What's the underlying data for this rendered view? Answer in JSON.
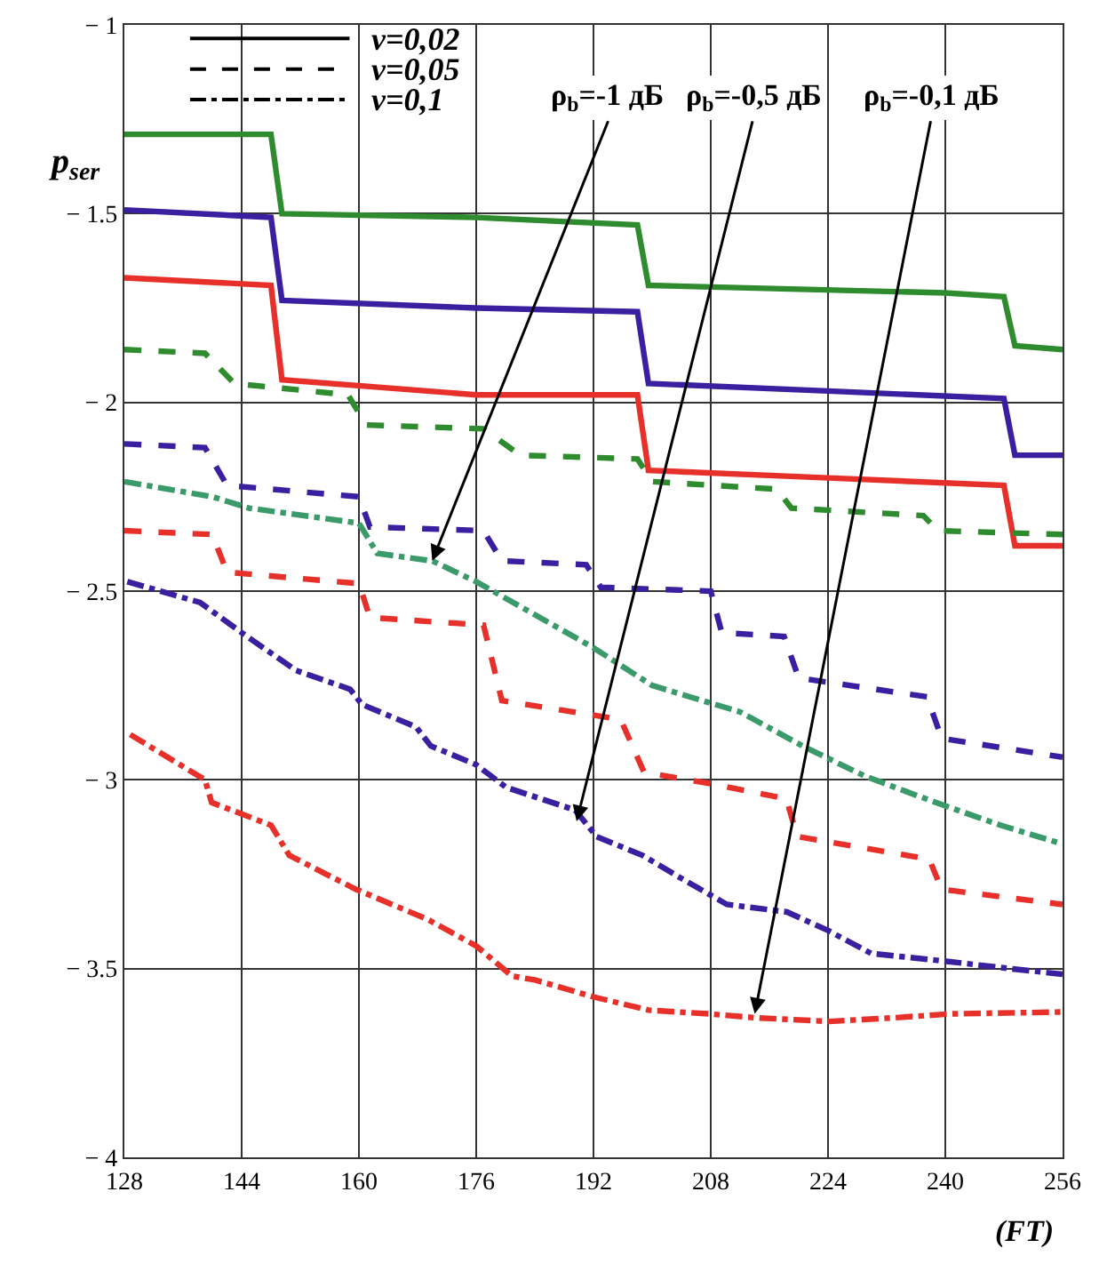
{
  "chart_data": {
    "type": "line",
    "xlabel": "(FT)",
    "ylabel": "p$_{ser}$",
    "xlim": [
      128,
      256
    ],
    "xticks": [
      128,
      144,
      160,
      176,
      192,
      208,
      224,
      240,
      256
    ],
    "ylim": [
      -4,
      -1
    ],
    "yticks": [
      {
        "value": -4,
        "label": "− 4"
      },
      {
        "value": -3.5,
        "label": "− 3.5"
      },
      {
        "value": -3,
        "label": "− 3"
      },
      {
        "value": -2.5,
        "label": "− 2.5"
      },
      {
        "value": -2,
        "label": "− 2"
      },
      {
        "value": -1.5,
        "label": "− 1.5"
      },
      {
        "value": -1,
        "label": "− 1"
      }
    ],
    "grid": true,
    "legend": "top left",
    "marker": "none",
    "series": [
      {
        "name": "v=0,02",
        "color": "#000000",
        "line_style": "solid"
      },
      {
        "name": "v=0,05",
        "color": "#000000",
        "line_style": "dashed"
      },
      {
        "name": "v=0,1",
        "color": "#000000",
        "line_style": "dashdot"
      },
      {
        "color": "#2e8b2e",
        "line_style": "solid",
        "x": [
          128,
          148,
          149.5,
          176,
          198,
          199.5,
          240,
          248,
          249.5,
          256
        ],
        "values": [
          -1.29,
          -1.29,
          -1.5,
          -1.51,
          -1.53,
          -1.69,
          -1.71,
          -1.72,
          -1.85,
          -1.86
        ]
      },
      {
        "color": "#3a1fa0",
        "line_style": "solid",
        "x": [
          128,
          148,
          149.5,
          176,
          198,
          199.5,
          224,
          248,
          249.5,
          256
        ],
        "values": [
          -1.49,
          -1.51,
          -1.73,
          -1.75,
          -1.76,
          -1.95,
          -1.97,
          -1.99,
          -2.14,
          -2.14
        ]
      },
      {
        "color": "#e8302a",
        "line_style": "solid",
        "x": [
          128,
          148,
          149.5,
          176,
          198,
          199.5,
          224,
          248,
          249.5,
          256
        ],
        "values": [
          -1.67,
          -1.69,
          -1.94,
          -1.98,
          -1.98,
          -2.18,
          -2.2,
          -2.22,
          -2.38,
          -2.38
        ]
      },
      {
        "color": "#2e8b2e",
        "line_style": "dashed",
        "x": [
          128,
          139,
          143,
          158.5,
          161,
          177,
          182,
          198,
          200,
          217,
          219,
          237,
          239,
          256
        ],
        "values": [
          -1.86,
          -1.87,
          -1.95,
          -1.98,
          -2.06,
          -2.07,
          -2.14,
          -2.15,
          -2.21,
          -2.23,
          -2.28,
          -2.3,
          -2.34,
          -2.35
        ]
      },
      {
        "color": "#3a1fa0",
        "line_style": "dashed",
        "x": [
          128,
          139,
          142,
          160,
          161.5,
          177,
          179.5,
          191,
          193,
          208,
          209.5,
          218,
          220,
          237.5,
          239.5,
          256
        ],
        "values": [
          -2.11,
          -2.12,
          -2.22,
          -2.25,
          -2.33,
          -2.34,
          -2.42,
          -2.43,
          -2.49,
          -2.5,
          -2.61,
          -2.62,
          -2.73,
          -2.78,
          -2.89,
          -2.94
        ]
      },
      {
        "color": "#3a9a6a",
        "line_style": "dashdot",
        "x": [
          128,
          140,
          145,
          160,
          162.5,
          170,
          176,
          192,
          200,
          212,
          220.5,
          229,
          238.7,
          247.5,
          256
        ],
        "values": [
          -2.21,
          -2.25,
          -2.28,
          -2.32,
          -2.4,
          -2.42,
          -2.475,
          -2.65,
          -2.75,
          -2.82,
          -2.91,
          -2.99,
          -3.06,
          -3.12,
          -3.17
        ]
      },
      {
        "color": "#e8302a",
        "line_style": "dashed",
        "x": [
          128,
          140,
          142,
          160,
          161.5,
          177,
          179.5,
          195.7,
          198.9,
          208,
          218.3,
          219.8,
          237.8,
          239.5,
          256
        ],
        "values": [
          -2.34,
          -2.35,
          -2.45,
          -2.48,
          -2.57,
          -2.59,
          -2.79,
          -2.84,
          -2.98,
          -3.01,
          -3.05,
          -3.15,
          -3.21,
          -3.29,
          -3.33
        ]
      },
      {
        "color": "#3a1fa0",
        "line_style": "dashdot",
        "x": [
          128.4,
          138.3,
          144,
          151.4,
          158.8,
          160.4,
          167.8,
          169.8,
          176,
          180.1,
          189.5,
          192.4,
          198.7,
          203.9,
          210.2,
          218.4,
          224.1,
          229.9,
          239.8,
          248.8,
          256
        ],
        "values": [
          -2.475,
          -2.53,
          -2.61,
          -2.71,
          -2.76,
          -2.8,
          -2.86,
          -2.91,
          -2.96,
          -3.02,
          -3.08,
          -3.15,
          -3.2,
          -3.26,
          -3.33,
          -3.35,
          -3.4,
          -3.46,
          -3.48,
          -3.5,
          -3.515
        ]
      },
      {
        "color": "#e8302a",
        "line_style": "dashdot",
        "x": [
          128.8,
          139,
          139.9,
          148,
          150.5,
          159.6,
          169.4,
          176,
          180.9,
          184,
          192,
          199.5,
          207.8,
          213.9,
          224.2,
          233.2,
          240.6,
          256
        ],
        "values": [
          -2.88,
          -3.0,
          -3.06,
          -3.12,
          -3.2,
          -3.29,
          -3.37,
          -3.44,
          -3.52,
          -3.53,
          -3.575,
          -3.61,
          -3.62,
          -3.63,
          -3.64,
          -3.63,
          -3.62,
          -3.615
        ]
      }
    ],
    "annotations": [
      {
        "text": "ρ$_{b}$=-1 дБ",
        "x": 170,
        "y": -2.42
      },
      {
        "text": "ρ$_{b}$=-0,5 дБ",
        "x": 189.7,
        "y": -3.11
      },
      {
        "text": "ρ$_{b}$=-0,1 дБ",
        "x": 214,
        "y": -3.62
      }
    ]
  }
}
